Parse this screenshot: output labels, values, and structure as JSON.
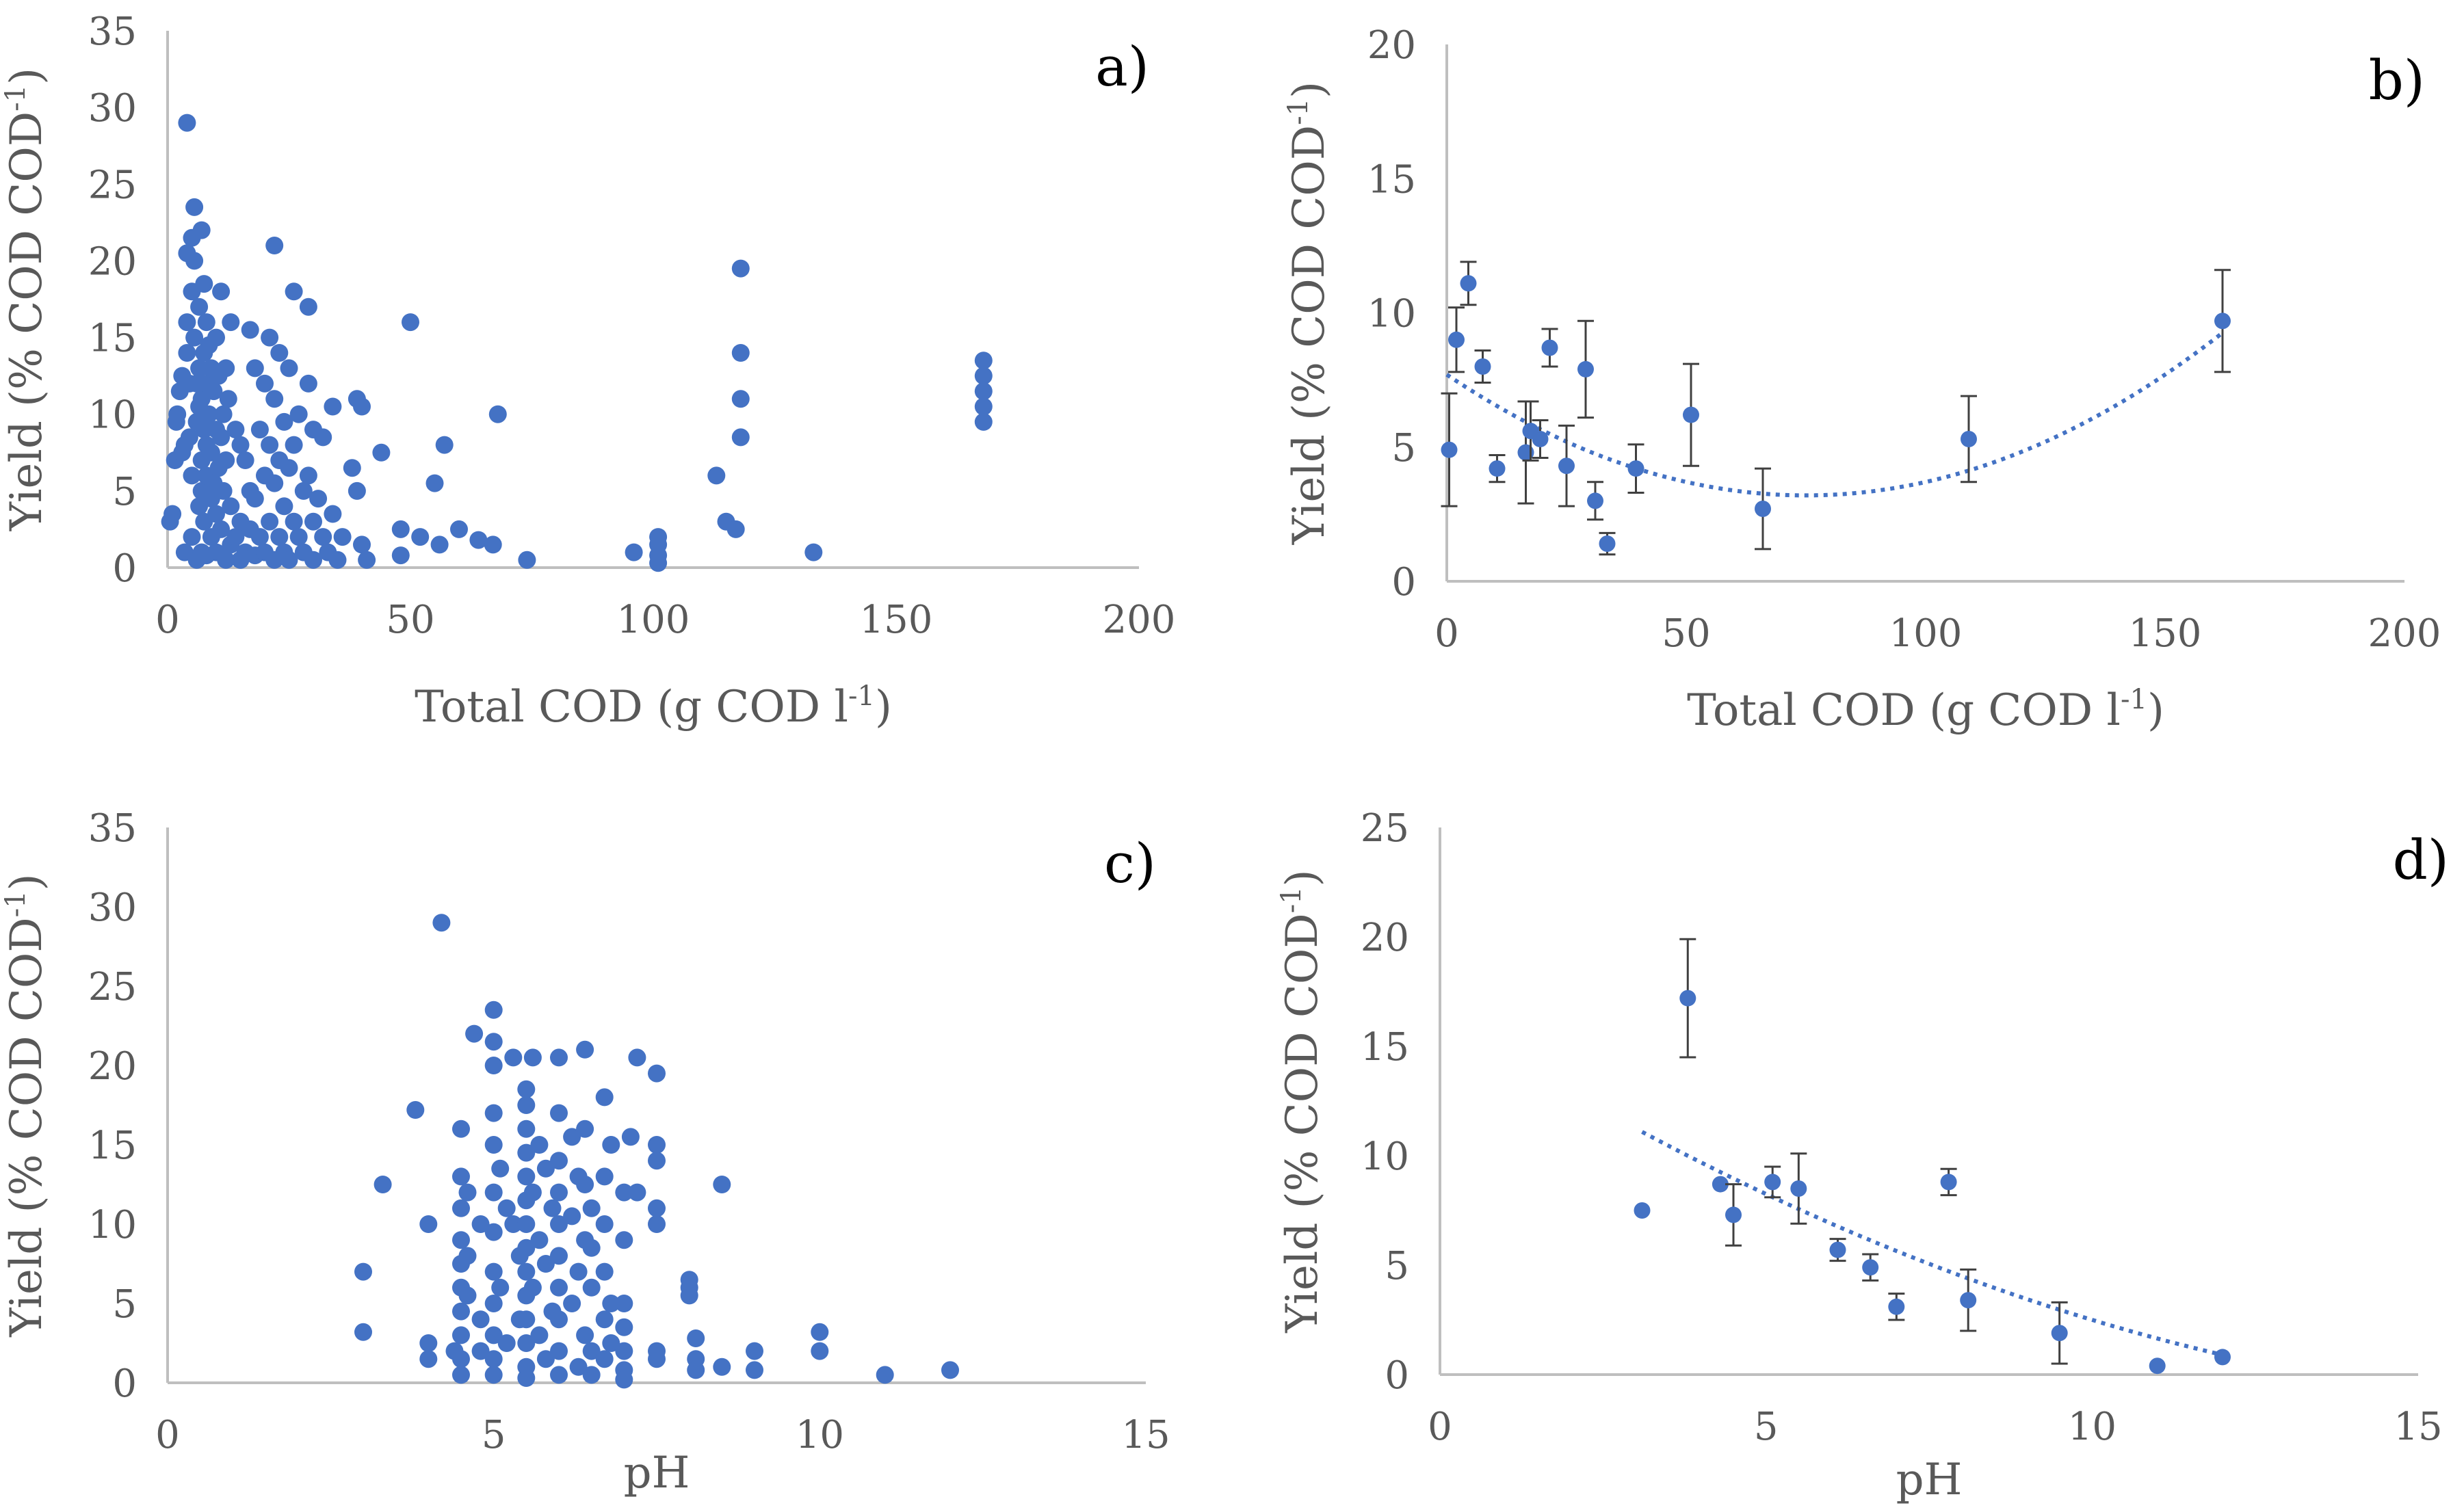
{
  "colors": {
    "marker": "#4472C4",
    "axis": "#BFBFBF",
    "text": "#595959",
    "errorbar": "#404040",
    "trend": "#4472C4"
  },
  "chart_data": [
    {
      "id": "a",
      "type": "scatter",
      "panel_label": "a)",
      "xlabel_main": "Total COD (g COD l",
      "xlabel_sup": "-1",
      "xlabel_end": ")",
      "ylabel_main": "Yield (% COD COD",
      "ylabel_sup": "-1",
      "ylabel_end": ")",
      "xlim": [
        0,
        200
      ],
      "ylim": [
        0,
        35
      ],
      "xticks": [
        0,
        50,
        100,
        150,
        200
      ],
      "yticks": [
        0,
        5,
        10,
        15,
        20,
        25,
        30,
        35
      ],
      "points": [
        [
          0.5,
          3
        ],
        [
          1,
          3.5
        ],
        [
          1.5,
          7
        ],
        [
          1.8,
          9.5
        ],
        [
          2,
          10
        ],
        [
          2.5,
          11.5
        ],
        [
          3,
          12.5
        ],
        [
          3,
          7.5
        ],
        [
          3.5,
          8
        ],
        [
          3.5,
          1
        ],
        [
          4,
          29
        ],
        [
          4,
          20.5
        ],
        [
          4,
          16
        ],
        [
          4,
          14
        ],
        [
          4.5,
          12
        ],
        [
          4.5,
          8.5
        ],
        [
          5,
          21.5
        ],
        [
          5,
          18
        ],
        [
          5,
          6
        ],
        [
          5,
          2
        ],
        [
          5.5,
          23.5
        ],
        [
          5.5,
          20
        ],
        [
          5.5,
          15
        ],
        [
          6,
          12
        ],
        [
          6,
          9.5
        ],
        [
          6,
          0.5
        ],
        [
          6.5,
          17
        ],
        [
          6.5,
          13
        ],
        [
          6.5,
          10.5
        ],
        [
          6.5,
          4
        ],
        [
          7,
          22
        ],
        [
          7,
          11
        ],
        [
          7,
          7
        ],
        [
          7,
          5
        ],
        [
          7,
          1
        ],
        [
          7.5,
          18.5
        ],
        [
          7.5,
          14
        ],
        [
          7.5,
          9
        ],
        [
          7.5,
          3
        ],
        [
          8,
          16
        ],
        [
          8,
          12
        ],
        [
          8,
          8
        ],
        [
          8,
          6
        ],
        [
          8,
          0.8
        ],
        [
          8.5,
          14.5
        ],
        [
          8.5,
          10
        ],
        [
          9,
          13
        ],
        [
          9,
          7.5
        ],
        [
          9,
          4.5
        ],
        [
          9,
          2
        ],
        [
          9.5,
          11.5
        ],
        [
          9.5,
          5.5
        ],
        [
          10,
          15
        ],
        [
          10,
          9
        ],
        [
          10,
          3.5
        ],
        [
          10,
          1
        ],
        [
          10.5,
          12.5
        ],
        [
          10.5,
          6.5
        ],
        [
          11,
          18
        ],
        [
          11,
          8.5
        ],
        [
          11,
          2.5
        ],
        [
          11.5,
          10
        ],
        [
          11.5,
          5
        ],
        [
          12,
          13
        ],
        [
          12,
          7
        ],
        [
          12,
          0.5
        ],
        [
          12.5,
          11
        ],
        [
          13,
          16
        ],
        [
          13,
          4
        ],
        [
          13,
          1.5
        ],
        [
          14,
          9
        ],
        [
          14,
          2
        ],
        [
          15,
          8
        ],
        [
          15,
          3
        ],
        [
          15,
          0.5
        ],
        [
          16,
          7
        ],
        [
          16,
          1
        ],
        [
          17,
          15.5
        ],
        [
          17,
          5
        ],
        [
          17,
          2.5
        ],
        [
          18,
          13
        ],
        [
          18,
          4.5
        ],
        [
          18,
          0.8
        ],
        [
          19,
          9
        ],
        [
          19,
          2
        ],
        [
          20,
          12
        ],
        [
          20,
          6
        ],
        [
          20,
          1
        ],
        [
          21,
          15
        ],
        [
          21,
          8
        ],
        [
          21,
          3
        ],
        [
          22,
          21
        ],
        [
          22,
          11
        ],
        [
          22,
          5.5
        ],
        [
          22,
          0.5
        ],
        [
          23,
          14
        ],
        [
          23,
          7
        ],
        [
          23,
          2
        ],
        [
          24,
          9.5
        ],
        [
          24,
          4
        ],
        [
          24,
          1
        ],
        [
          25,
          13
        ],
        [
          25,
          6.5
        ],
        [
          25,
          0.5
        ],
        [
          26,
          18
        ],
        [
          26,
          8
        ],
        [
          26,
          3
        ],
        [
          27,
          10
        ],
        [
          27,
          2
        ],
        [
          28,
          5
        ],
        [
          28,
          1
        ],
        [
          29,
          17
        ],
        [
          29,
          12
        ],
        [
          29,
          6
        ],
        [
          30,
          9
        ],
        [
          30,
          3
        ],
        [
          30,
          0.5
        ],
        [
          31,
          4.5
        ],
        [
          32,
          8.5
        ],
        [
          32,
          2
        ],
        [
          33,
          1
        ],
        [
          34,
          10.5
        ],
        [
          34,
          3.5
        ],
        [
          35,
          0.5
        ],
        [
          36,
          2
        ],
        [
          38,
          6.5
        ],
        [
          39,
          11
        ],
        [
          39,
          5
        ],
        [
          40,
          10.5
        ],
        [
          40,
          1.5
        ],
        [
          41,
          0.5
        ],
        [
          44,
          7.5
        ],
        [
          48,
          2.5
        ],
        [
          48,
          0.8
        ],
        [
          50,
          16
        ],
        [
          52,
          2
        ],
        [
          55,
          5.5
        ],
        [
          56,
          1.5
        ],
        [
          57,
          8
        ],
        [
          60,
          2.5
        ],
        [
          64,
          1.8
        ],
        [
          67,
          1.5
        ],
        [
          68,
          10
        ],
        [
          74,
          0.5
        ],
        [
          96,
          1
        ],
        [
          101,
          2
        ],
        [
          101,
          1.5
        ],
        [
          101,
          0.8
        ],
        [
          101,
          0.3
        ],
        [
          113,
          6
        ],
        [
          115,
          3
        ],
        [
          117,
          2.5
        ],
        [
          118,
          19.5
        ],
        [
          118,
          14
        ],
        [
          118,
          11
        ],
        [
          118,
          8.5
        ],
        [
          133,
          1
        ],
        [
          168,
          13.5
        ],
        [
          168,
          12.5
        ],
        [
          168,
          11.5
        ],
        [
          168,
          10.5
        ],
        [
          168,
          9.5
        ]
      ]
    },
    {
      "id": "b",
      "type": "scatter",
      "panel_label": "b)",
      "xlabel_main": "Total COD (g COD l",
      "xlabel_sup": "-1",
      "xlabel_end": ")",
      "ylabel_main": "Yield (% COD COD",
      "ylabel_sup": "-1",
      "ylabel_end": ")",
      "xlim": [
        0,
        200
      ],
      "ylim": [
        0,
        20
      ],
      "xticks": [
        0,
        50,
        100,
        150,
        200
      ],
      "yticks": [
        0,
        5,
        10,
        15,
        20
      ],
      "points": [
        [
          0.5,
          4.9,
          2.1
        ],
        [
          2,
          9,
          1.2
        ],
        [
          4.5,
          11.1,
          0.8
        ],
        [
          7.5,
          8,
          0.6
        ],
        [
          10.5,
          4.2,
          0.5
        ],
        [
          16.5,
          4.8,
          1.9
        ],
        [
          17.5,
          5.6,
          1.1
        ],
        [
          19.5,
          5.3,
          0.7
        ],
        [
          21.5,
          8.7,
          0.7
        ],
        [
          25,
          4.3,
          1.5
        ],
        [
          29,
          7.9,
          1.8
        ],
        [
          31,
          3,
          0.7
        ],
        [
          33.5,
          1.4,
          0.4
        ],
        [
          39.5,
          4.2,
          0.9
        ],
        [
          51,
          6.2,
          1.9
        ],
        [
          66,
          2.7,
          1.5
        ],
        [
          109,
          5.3,
          1.6
        ],
        [
          162,
          9.7,
          1.9
        ]
      ],
      "trend": {
        "type": "polynomial",
        "degree": 2,
        "coef": [
          7.7,
          -0.12,
          0.0008
        ],
        "xrange": [
          0,
          162
        ]
      }
    },
    {
      "id": "c",
      "type": "scatter",
      "panel_label": "c)",
      "xlabel_main": "pH",
      "xlabel_sup": "",
      "xlabel_end": "",
      "ylabel_main": "Yield (% COD COD",
      "ylabel_sup": "-1",
      "ylabel_end": ")",
      "xlim": [
        0,
        15
      ],
      "ylim": [
        0,
        35
      ],
      "xticks": [
        0,
        5,
        10,
        15
      ],
      "yticks": [
        0,
        5,
        10,
        15,
        20,
        25,
        30,
        35
      ],
      "points": [
        [
          3,
          7
        ],
        [
          3,
          3.2
        ],
        [
          3.3,
          12.5
        ],
        [
          3.8,
          17.2
        ],
        [
          4,
          10
        ],
        [
          4,
          2.5
        ],
        [
          4,
          1.5
        ],
        [
          4.2,
          29
        ],
        [
          4.4,
          2
        ],
        [
          4.5,
          16
        ],
        [
          4.5,
          13
        ],
        [
          4.5,
          11
        ],
        [
          4.5,
          9
        ],
        [
          4.5,
          7.5
        ],
        [
          4.5,
          6
        ],
        [
          4.5,
          4.5
        ],
        [
          4.5,
          3
        ],
        [
          4.5,
          1.5
        ],
        [
          4.5,
          0.5
        ],
        [
          4.6,
          12
        ],
        [
          4.6,
          8
        ],
        [
          4.6,
          5.5
        ],
        [
          4.7,
          22
        ],
        [
          4.8,
          10
        ],
        [
          4.8,
          4
        ],
        [
          4.8,
          2
        ],
        [
          5,
          23.5
        ],
        [
          5,
          21.5
        ],
        [
          5,
          20
        ],
        [
          5,
          17
        ],
        [
          5,
          15
        ],
        [
          5,
          12
        ],
        [
          5,
          9.5
        ],
        [
          5,
          7
        ],
        [
          5,
          5
        ],
        [
          5,
          3
        ],
        [
          5,
          1.5
        ],
        [
          5,
          0.5
        ],
        [
          5.1,
          13.5
        ],
        [
          5.1,
          6
        ],
        [
          5.2,
          11
        ],
        [
          5.2,
          2.5
        ],
        [
          5.3,
          20.5
        ],
        [
          5.3,
          10
        ],
        [
          5.4,
          8
        ],
        [
          5.4,
          4
        ],
        [
          5.5,
          18.5
        ],
        [
          5.5,
          17.5
        ],
        [
          5.5,
          16
        ],
        [
          5.5,
          14.5
        ],
        [
          5.5,
          13
        ],
        [
          5.5,
          11.5
        ],
        [
          5.5,
          10
        ],
        [
          5.5,
          8.5
        ],
        [
          5.5,
          7
        ],
        [
          5.5,
          5.5
        ],
        [
          5.5,
          4
        ],
        [
          5.5,
          2.5
        ],
        [
          5.5,
          1
        ],
        [
          5.5,
          0.3
        ],
        [
          5.6,
          20.5
        ],
        [
          5.6,
          12
        ],
        [
          5.6,
          6
        ],
        [
          5.7,
          15
        ],
        [
          5.7,
          9
        ],
        [
          5.7,
          3
        ],
        [
          5.8,
          13.5
        ],
        [
          5.8,
          7.5
        ],
        [
          5.8,
          1.5
        ],
        [
          5.9,
          11
        ],
        [
          5.9,
          4.5
        ],
        [
          6,
          20.5
        ],
        [
          6,
          17
        ],
        [
          6,
          14
        ],
        [
          6,
          12
        ],
        [
          6,
          10
        ],
        [
          6,
          8
        ],
        [
          6,
          6
        ],
        [
          6,
          4
        ],
        [
          6,
          2
        ],
        [
          6,
          0.5
        ],
        [
          6.2,
          15.5
        ],
        [
          6.2,
          10.5
        ],
        [
          6.2,
          5
        ],
        [
          6.3,
          13
        ],
        [
          6.3,
          7
        ],
        [
          6.3,
          1
        ],
        [
          6.4,
          21
        ],
        [
          6.4,
          16
        ],
        [
          6.4,
          12.5
        ],
        [
          6.4,
          9
        ],
        [
          6.4,
          3
        ],
        [
          6.5,
          11
        ],
        [
          6.5,
          8.5
        ],
        [
          6.5,
          6
        ],
        [
          6.5,
          2
        ],
        [
          6.5,
          0.5
        ],
        [
          6.7,
          18
        ],
        [
          6.7,
          13
        ],
        [
          6.7,
          10
        ],
        [
          6.7,
          7
        ],
        [
          6.7,
          4
        ],
        [
          6.7,
          1.5
        ],
        [
          6.8,
          15
        ],
        [
          6.8,
          5
        ],
        [
          6.8,
          2.5
        ],
        [
          7,
          12
        ],
        [
          7,
          9
        ],
        [
          7,
          5
        ],
        [
          7,
          3.5
        ],
        [
          7,
          2
        ],
        [
          7,
          0.8
        ],
        [
          7,
          0.2
        ],
        [
          7.1,
          15.5
        ],
        [
          7.2,
          20.5
        ],
        [
          7.2,
          12
        ],
        [
          7.5,
          19.5
        ],
        [
          7.5,
          15
        ],
        [
          7.5,
          14
        ],
        [
          7.5,
          11
        ],
        [
          7.5,
          10
        ],
        [
          7.5,
          2
        ],
        [
          7.5,
          1.5
        ],
        [
          8,
          6.5
        ],
        [
          8,
          6
        ],
        [
          8,
          5.5
        ],
        [
          8.1,
          2.8
        ],
        [
          8.1,
          1.5
        ],
        [
          8.1,
          0.8
        ],
        [
          8.5,
          12.5
        ],
        [
          8.5,
          1
        ],
        [
          9,
          2
        ],
        [
          9,
          0.8
        ],
        [
          10,
          3.2
        ],
        [
          10,
          2
        ],
        [
          11,
          0.5
        ],
        [
          12,
          0.8
        ]
      ]
    },
    {
      "id": "d",
      "type": "scatter",
      "panel_label": "d)",
      "xlabel_main": "pH",
      "xlabel_sup": "",
      "xlabel_end": "",
      "ylabel_main": "Yield (% COD COD",
      "ylabel_sup": "-1",
      "ylabel_end": ")",
      "xlim": [
        0,
        15
      ],
      "ylim": [
        0,
        25
      ],
      "xticks": [
        0,
        5,
        10,
        15
      ],
      "yticks": [
        0,
        5,
        10,
        15,
        20,
        25
      ],
      "points": [
        [
          3.1,
          7.5,
          0
        ],
        [
          3.8,
          17.2,
          2.7
        ],
        [
          4.3,
          8.7,
          0
        ],
        [
          4.5,
          7.3,
          1.4
        ],
        [
          5.1,
          8.8,
          0.7
        ],
        [
          5.5,
          8.5,
          1.6
        ],
        [
          6.1,
          5.7,
          0.5
        ],
        [
          6.6,
          4.9,
          0.6
        ],
        [
          7,
          3.1,
          0.6
        ],
        [
          7.8,
          8.8,
          0.6
        ],
        [
          8.1,
          3.4,
          1.4
        ],
        [
          9.5,
          1.9,
          1.4
        ],
        [
          11,
          0.4,
          0
        ],
        [
          12,
          0.8,
          0
        ]
      ],
      "trend": {
        "type": "polynomial",
        "degree": 2,
        "coef": [
          16.5,
          -1.9,
          0.05
        ],
        "xrange": [
          3.1,
          12
        ]
      }
    }
  ]
}
